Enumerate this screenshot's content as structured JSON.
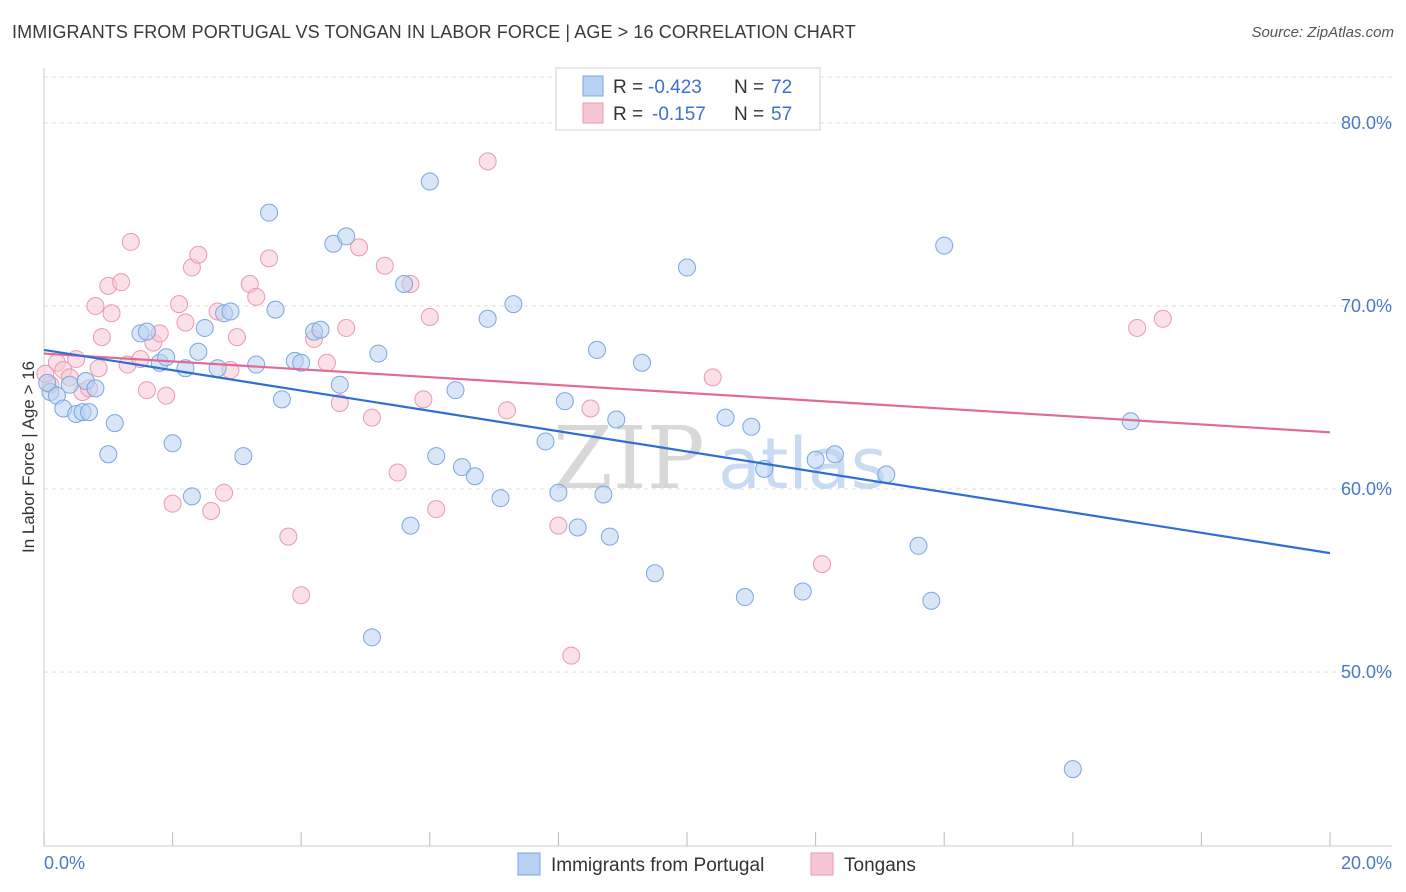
{
  "title": "IMMIGRANTS FROM PORTUGAL VS TONGAN IN LABOR FORCE | AGE > 16 CORRELATION CHART",
  "source": "Source: ZipAtlas.com",
  "watermark": {
    "zip": "ZIP",
    "atlas": "atlas"
  },
  "colors": {
    "blue_fill": "#b9d1f2",
    "blue_stroke": "#7aa7e0",
    "blue_line": "#2f6fd0",
    "pink_fill": "#f7c6d4",
    "pink_stroke": "#e99ab3",
    "pink_line": "#e06b96",
    "grid": "#dedede",
    "axis_text": "#4a78c8"
  },
  "chart_data": {
    "type": "scatter",
    "xlabel": "",
    "ylabel": "In Labor Force | Age > 16",
    "xlim": [
      0,
      20
    ],
    "ylim": [
      40.5,
      83
    ],
    "x_tick_labels": [
      "0.0%",
      "20.0%"
    ],
    "y_ticks": [
      50,
      60,
      70,
      80
    ],
    "y_tick_labels": [
      "50.0%",
      "60.0%",
      "70.0%",
      "80.0%"
    ],
    "grid": true,
    "legend": {
      "placement": "top-center",
      "entries": [
        {
          "r_label": "R =",
          "r_value": "-0.423",
          "n_label": "N =",
          "n_value": "72"
        },
        {
          "r_label": "R =",
          "r_value": "-0.157",
          "n_label": "N =",
          "n_value": "57"
        }
      ]
    },
    "series": [
      {
        "name": "Immigrants from Portugal",
        "color": "#b9d1f2",
        "trend": {
          "x": [
            0,
            20
          ],
          "y": [
            67.6,
            56.5
          ]
        },
        "points": [
          [
            0.1,
            65.3
          ],
          [
            0.2,
            65.1
          ],
          [
            0.3,
            64.4
          ],
          [
            0.4,
            65.7
          ],
          [
            0.5,
            64.1
          ],
          [
            0.6,
            64.2
          ],
          [
            0.65,
            65.9
          ],
          [
            0.7,
            64.2
          ],
          [
            0.8,
            65.5
          ],
          [
            1.0,
            61.9
          ],
          [
            1.1,
            63.6
          ],
          [
            1.5,
            68.5
          ],
          [
            1.6,
            68.6
          ],
          [
            1.8,
            66.9
          ],
          [
            1.9,
            67.2
          ],
          [
            2.0,
            62.5
          ],
          [
            2.2,
            66.6
          ],
          [
            2.3,
            59.6
          ],
          [
            2.4,
            67.5
          ],
          [
            2.5,
            68.8
          ],
          [
            2.7,
            66.6
          ],
          [
            2.8,
            69.6
          ],
          [
            2.9,
            69.7
          ],
          [
            3.1,
            61.8
          ],
          [
            3.3,
            66.8
          ],
          [
            3.5,
            75.1
          ],
          [
            3.6,
            69.8
          ],
          [
            3.7,
            64.9
          ],
          [
            3.9,
            67.0
          ],
          [
            4.0,
            66.9
          ],
          [
            4.2,
            68.6
          ],
          [
            4.3,
            68.7
          ],
          [
            4.5,
            73.4
          ],
          [
            4.6,
            65.7
          ],
          [
            4.7,
            73.8
          ],
          [
            5.1,
            51.9
          ],
          [
            5.2,
            67.4
          ],
          [
            5.6,
            71.2
          ],
          [
            5.7,
            58.0
          ],
          [
            6.0,
            76.8
          ],
          [
            6.1,
            61.8
          ],
          [
            6.4,
            65.4
          ],
          [
            6.5,
            61.2
          ],
          [
            6.7,
            60.7
          ],
          [
            6.9,
            69.3
          ],
          [
            7.1,
            59.5
          ],
          [
            7.3,
            70.1
          ],
          [
            7.8,
            62.6
          ],
          [
            8.0,
            59.8
          ],
          [
            8.1,
            64.8
          ],
          [
            8.3,
            57.9
          ],
          [
            8.6,
            67.6
          ],
          [
            8.7,
            59.7
          ],
          [
            8.8,
            57.4
          ],
          [
            8.9,
            63.8
          ],
          [
            9.3,
            66.9
          ],
          [
            9.5,
            55.4
          ],
          [
            10.0,
            72.1
          ],
          [
            10.6,
            63.9
          ],
          [
            10.9,
            54.1
          ],
          [
            11.0,
            63.4
          ],
          [
            11.2,
            61.1
          ],
          [
            11.8,
            54.4
          ],
          [
            12.0,
            61.6
          ],
          [
            12.3,
            61.9
          ],
          [
            13.1,
            60.8
          ],
          [
            13.6,
            56.9
          ],
          [
            13.8,
            53.9
          ],
          [
            14.0,
            73.3
          ],
          [
            16.0,
            44.7
          ],
          [
            16.9,
            63.7
          ],
          [
            0.05,
            65.8
          ]
        ]
      },
      {
        "name": "Tongans",
        "color": "#f7c6d4",
        "trend": {
          "x": [
            0,
            20
          ],
          "y": [
            67.4,
            63.1
          ]
        },
        "points": [
          [
            0.1,
            65.7
          ],
          [
            0.2,
            66.9
          ],
          [
            0.3,
            66.5
          ],
          [
            0.4,
            66.1
          ],
          [
            0.5,
            67.1
          ],
          [
            0.6,
            65.3
          ],
          [
            0.7,
            65.5
          ],
          [
            0.8,
            70.0
          ],
          [
            0.85,
            66.6
          ],
          [
            0.9,
            68.3
          ],
          [
            1.0,
            71.1
          ],
          [
            1.05,
            69.6
          ],
          [
            1.2,
            71.3
          ],
          [
            1.3,
            66.8
          ],
          [
            1.35,
            73.5
          ],
          [
            1.5,
            67.1
          ],
          [
            1.6,
            65.4
          ],
          [
            1.7,
            68.0
          ],
          [
            1.8,
            68.5
          ],
          [
            1.9,
            65.1
          ],
          [
            2.0,
            59.2
          ],
          [
            2.1,
            70.1
          ],
          [
            2.2,
            69.1
          ],
          [
            2.3,
            72.1
          ],
          [
            2.4,
            72.8
          ],
          [
            2.6,
            58.8
          ],
          [
            2.7,
            69.7
          ],
          [
            2.8,
            59.8
          ],
          [
            2.9,
            66.5
          ],
          [
            3.0,
            68.3
          ],
          [
            3.2,
            71.2
          ],
          [
            3.3,
            70.5
          ],
          [
            3.5,
            72.6
          ],
          [
            3.8,
            57.4
          ],
          [
            4.0,
            54.2
          ],
          [
            4.2,
            68.2
          ],
          [
            4.4,
            66.9
          ],
          [
            4.6,
            64.7
          ],
          [
            4.7,
            68.8
          ],
          [
            4.9,
            73.2
          ],
          [
            5.1,
            63.9
          ],
          [
            5.3,
            72.2
          ],
          [
            5.5,
            60.9
          ],
          [
            5.7,
            71.2
          ],
          [
            5.9,
            64.9
          ],
          [
            6.0,
            69.4
          ],
          [
            6.1,
            58.9
          ],
          [
            6.9,
            77.9
          ],
          [
            7.2,
            64.3
          ],
          [
            8.0,
            58.0
          ],
          [
            8.2,
            50.9
          ],
          [
            8.5,
            64.4
          ],
          [
            10.4,
            66.1
          ],
          [
            12.1,
            55.9
          ],
          [
            17.0,
            68.8
          ],
          [
            17.4,
            69.3
          ],
          [
            0.02,
            66.3
          ]
        ]
      }
    ]
  }
}
